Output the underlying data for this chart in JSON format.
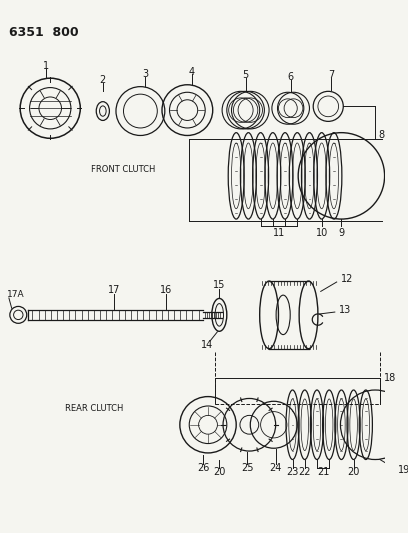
{
  "title": "6351  800",
  "background_color": "#f5f5f0",
  "line_color": "#1a1a1a",
  "text_color": "#1a1a1a",
  "label_front_clutch": "FRONT CLUTCH",
  "label_rear_clutch": "REAR CLUTCH",
  "fig_width": 4.08,
  "fig_height": 5.33,
  "dpi": 100
}
